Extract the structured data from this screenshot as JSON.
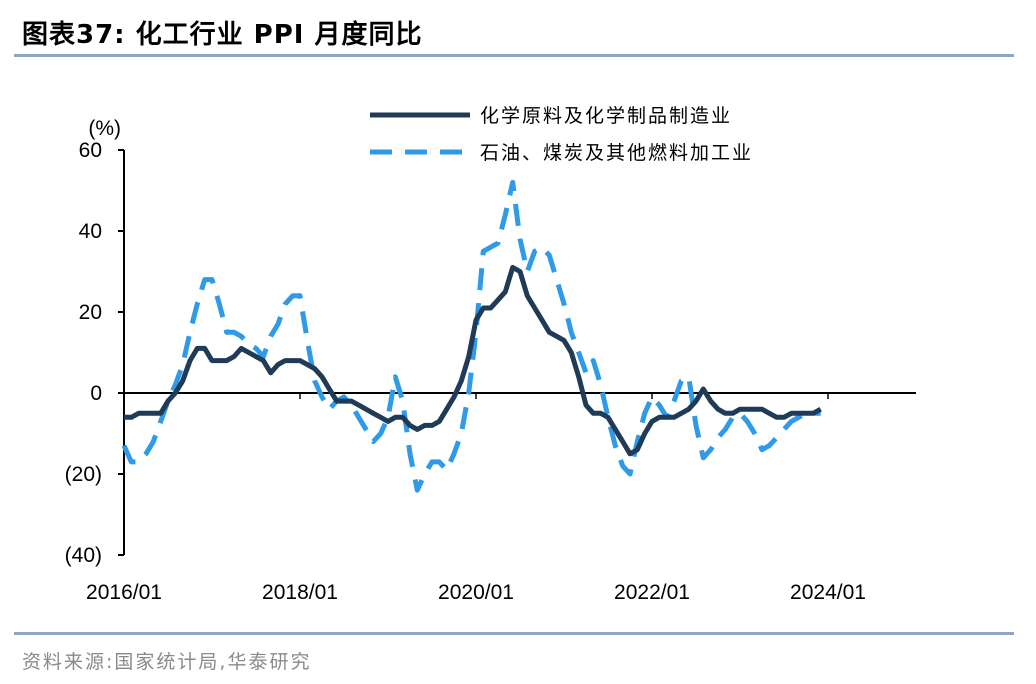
{
  "title": "图表37:  化工行业 PPI 月度同比",
  "source": "资料来源:国家统计局,华泰研究",
  "chart_data": {
    "type": "line",
    "ylabel": "(%)",
    "ylim": [
      -40,
      60
    ],
    "yticks": [
      60,
      40,
      20,
      0,
      -20,
      -40
    ],
    "ytick_labels": [
      "60",
      "40",
      "20",
      "0",
      "(20)",
      "(40)"
    ],
    "x_start": "2016/01",
    "x_months": 108,
    "xticks": [
      "2016/01",
      "2018/01",
      "2020/01",
      "2022/01",
      "2024/01"
    ],
    "legend_position": "top-right",
    "series": [
      {
        "name": "化学原料及化学制品制造业",
        "color": "#1f3b57",
        "style": "solid",
        "points": [
          [
            0,
            -6
          ],
          [
            1,
            -6
          ],
          [
            2,
            -5
          ],
          [
            3,
            -5
          ],
          [
            4,
            -5
          ],
          [
            5,
            -5
          ],
          [
            6,
            -2
          ],
          [
            7,
            0
          ],
          [
            8,
            3
          ],
          [
            9,
            8
          ],
          [
            10,
            11
          ],
          [
            11,
            11
          ],
          [
            12,
            8
          ],
          [
            13,
            8
          ],
          [
            14,
            8
          ],
          [
            15,
            9
          ],
          [
            16,
            11
          ],
          [
            17,
            10
          ],
          [
            18,
            9
          ],
          [
            19,
            8
          ],
          [
            20,
            5
          ],
          [
            21,
            7
          ],
          [
            22,
            8
          ],
          [
            23,
            8
          ],
          [
            24,
            8
          ],
          [
            25,
            7
          ],
          [
            26,
            6
          ],
          [
            27,
            4
          ],
          [
            28,
            1
          ],
          [
            29,
            -2
          ],
          [
            30,
            -2
          ],
          [
            31,
            -2
          ],
          [
            32,
            -3
          ],
          [
            33,
            -4
          ],
          [
            34,
            -5
          ],
          [
            35,
            -6
          ],
          [
            36,
            -7
          ],
          [
            37,
            -6
          ],
          [
            38,
            -6
          ],
          [
            39,
            -8
          ],
          [
            40,
            -9
          ],
          [
            41,
            -8
          ],
          [
            42,
            -8
          ],
          [
            43,
            -7
          ],
          [
            44,
            -4
          ],
          [
            45,
            -1
          ],
          [
            46,
            3
          ],
          [
            47,
            9
          ],
          [
            48,
            18
          ],
          [
            49,
            21
          ],
          [
            50,
            21
          ],
          [
            51,
            23
          ],
          [
            52,
            25
          ],
          [
            53,
            31
          ],
          [
            54,
            30
          ],
          [
            55,
            24
          ],
          [
            56,
            21
          ],
          [
            57,
            18
          ],
          [
            58,
            15
          ],
          [
            59,
            14
          ],
          [
            60,
            13
          ],
          [
            61,
            10
          ],
          [
            62,
            4
          ],
          [
            63,
            -3
          ],
          [
            64,
            -5
          ],
          [
            65,
            -5
          ],
          [
            66,
            -6
          ],
          [
            67,
            -9
          ],
          [
            68,
            -12
          ],
          [
            69,
            -15
          ],
          [
            70,
            -14
          ],
          [
            71,
            -10
          ],
          [
            72,
            -7
          ],
          [
            73,
            -6
          ],
          [
            74,
            -6
          ],
          [
            75,
            -6
          ],
          [
            76,
            -5
          ],
          [
            77,
            -4
          ],
          [
            78,
            -2
          ],
          [
            79,
            1
          ],
          [
            80,
            -2
          ],
          [
            81,
            -4
          ],
          [
            82,
            -5
          ],
          [
            83,
            -5
          ],
          [
            84,
            -4
          ],
          [
            85,
            -4
          ],
          [
            86,
            -4
          ],
          [
            87,
            -4
          ],
          [
            88,
            -5
          ],
          [
            89,
            -6
          ],
          [
            90,
            -6
          ],
          [
            91,
            -5
          ],
          [
            92,
            -5
          ],
          [
            93,
            -5
          ],
          [
            94,
            -5
          ],
          [
            95,
            -4
          ]
        ]
      },
      {
        "name": "石油、煤炭及其他燃料加工业",
        "color": "#2e9ae8",
        "style": "dashed",
        "points": [
          [
            0,
            -13
          ],
          [
            1,
            -17
          ],
          [
            2,
            -17
          ],
          [
            3,
            -15
          ],
          [
            4,
            -12
          ],
          [
            5,
            -7
          ],
          [
            6,
            -2
          ],
          [
            7,
            2
          ],
          [
            8,
            7
          ],
          [
            9,
            15
          ],
          [
            10,
            22
          ],
          [
            11,
            28
          ],
          [
            12,
            28
          ],
          [
            13,
            22
          ],
          [
            14,
            15
          ],
          [
            15,
            15
          ],
          [
            16,
            14
          ],
          [
            17,
            12
          ],
          [
            18,
            11
          ],
          [
            19,
            9
          ],
          [
            20,
            14
          ],
          [
            21,
            17
          ],
          [
            22,
            22
          ],
          [
            23,
            24
          ],
          [
            24,
            24
          ],
          [
            25,
            13
          ],
          [
            26,
            3
          ],
          [
            27,
            -1
          ],
          [
            28,
            -4
          ],
          [
            29,
            -2
          ],
          [
            30,
            -1
          ],
          [
            31,
            -3
          ],
          [
            32,
            -6
          ],
          [
            33,
            -9
          ],
          [
            34,
            -12
          ],
          [
            35,
            -10
          ],
          [
            36,
            -6
          ],
          [
            37,
            4
          ],
          [
            38,
            -2
          ],
          [
            39,
            -15
          ],
          [
            40,
            -24
          ],
          [
            41,
            -20
          ],
          [
            42,
            -17
          ],
          [
            43,
            -17
          ],
          [
            44,
            -19
          ],
          [
            45,
            -15
          ],
          [
            46,
            -10
          ],
          [
            47,
            0
          ],
          [
            48,
            15
          ],
          [
            49,
            35
          ],
          [
            50,
            36
          ],
          [
            51,
            37
          ],
          [
            52,
            44
          ],
          [
            53,
            52
          ],
          [
            54,
            38
          ],
          [
            55,
            30
          ],
          [
            56,
            35
          ],
          [
            57,
            36
          ],
          [
            58,
            34
          ],
          [
            59,
            28
          ],
          [
            60,
            22
          ],
          [
            61,
            15
          ],
          [
            62,
            10
          ],
          [
            63,
            5
          ],
          [
            64,
            8
          ],
          [
            65,
            2
          ],
          [
            66,
            -6
          ],
          [
            67,
            -13
          ],
          [
            68,
            -18
          ],
          [
            69,
            -20
          ],
          [
            70,
            -12
          ],
          [
            71,
            -5
          ],
          [
            72,
            -1
          ],
          [
            73,
            -3
          ],
          [
            74,
            -6
          ],
          [
            75,
            -2
          ],
          [
            76,
            3
          ],
          [
            77,
            4
          ],
          [
            78,
            -8
          ],
          [
            79,
            -16
          ],
          [
            80,
            -14
          ],
          [
            81,
            -11
          ],
          [
            82,
            -9
          ],
          [
            83,
            -6
          ],
          [
            84,
            -5
          ],
          [
            85,
            -7
          ],
          [
            86,
            -10
          ],
          [
            87,
            -14
          ],
          [
            88,
            -13
          ],
          [
            89,
            -11
          ],
          [
            90,
            -9
          ],
          [
            91,
            -7
          ],
          [
            92,
            -6
          ],
          [
            93,
            -5
          ],
          [
            94,
            -5
          ],
          [
            95,
            -5
          ]
        ]
      }
    ]
  }
}
